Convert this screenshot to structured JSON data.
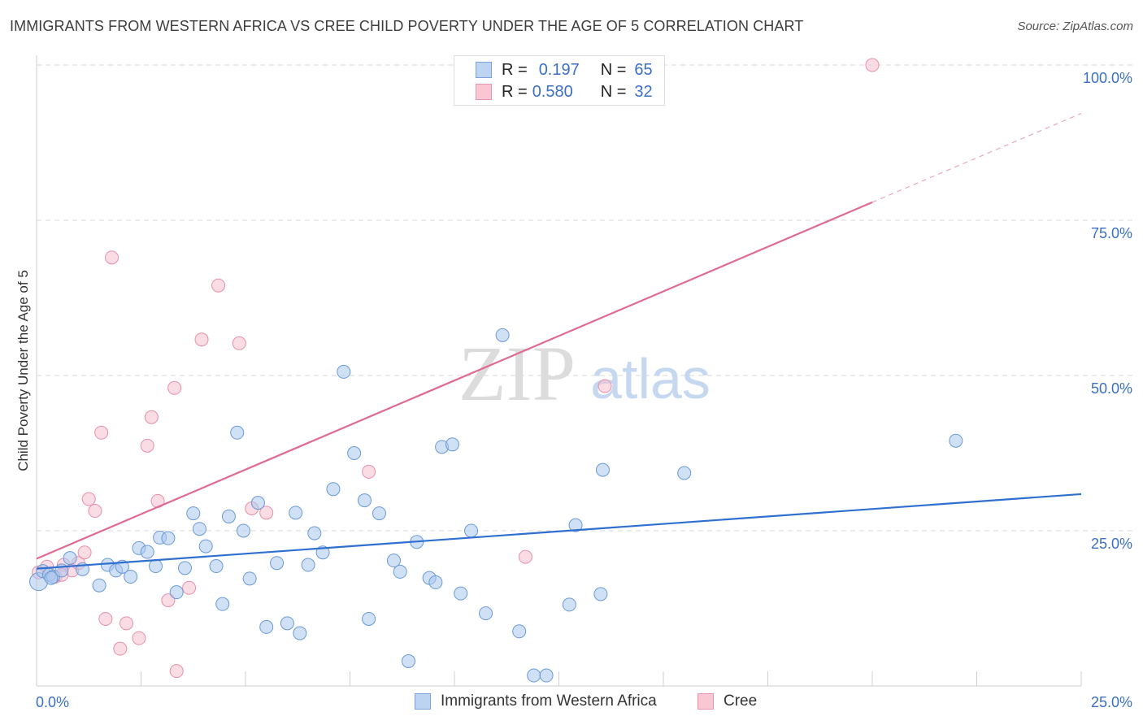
{
  "title": "IMMIGRANTS FROM WESTERN AFRICA VS CREE CHILD POVERTY UNDER THE AGE OF 5 CORRELATION CHART",
  "source": "Source: ZipAtlas.com",
  "watermark": {
    "zip": "ZIP",
    "atlas": "atlas"
  },
  "legend": {
    "r_label": "R =",
    "n_label": "N =",
    "entries": [
      {
        "r": "0.197",
        "n": "65",
        "fill": "#bcd3f2",
        "stroke": "#7aa3dd"
      },
      {
        "r": "0.580",
        "n": "32",
        "fill": "#f9c6d4",
        "stroke": "#e994ae"
      }
    ]
  },
  "colors": {
    "blue_fill": "#aac8ee",
    "blue_stroke": "#6a99d6",
    "blue_line": "#2f6fd0",
    "pink_fill": "#f6bfd0",
    "pink_stroke": "#e690ab",
    "pink_line": "#e06a92",
    "tick_label": "#3b6fc4",
    "grid": "#d9d9d9"
  },
  "chart_data": {
    "type": "scatter",
    "title": "IMMIGRANTS FROM WESTERN AFRICA VS CREE CHILD POVERTY UNDER THE AGE OF 5 CORRELATION CHART",
    "xlabel": "",
    "ylabel": "Child Poverty Under the Age of 5",
    "xlim": [
      0,
      25
    ],
    "ylim": [
      0,
      100
    ],
    "x_tick_labels": [
      "0.0%",
      "25.0%"
    ],
    "y_tick_labels": [
      {
        "value": 25,
        "label": "25.0%"
      },
      {
        "value": 50,
        "label": "50.0%"
      },
      {
        "value": 75,
        "label": "75.0%"
      },
      {
        "value": 100,
        "label": "100.0%"
      }
    ],
    "grid": true,
    "legend_position": "bottom",
    "series": [
      {
        "name": "Immigrants from Western Africa",
        "color": "#6a99d6",
        "trend": {
          "x": [
            0,
            25
          ],
          "y": [
            18.9,
            30.9
          ]
        },
        "points": [
          [
            0.05,
            16.8
          ],
          [
            0.15,
            18.5
          ],
          [
            0.3,
            17.9
          ],
          [
            0.4,
            17.6
          ],
          [
            0.6,
            18.6
          ],
          [
            0.8,
            20.6
          ],
          [
            1.1,
            18.8
          ],
          [
            1.5,
            16.2
          ],
          [
            1.7,
            19.5
          ],
          [
            1.9,
            18.6
          ],
          [
            2.05,
            19.2
          ],
          [
            2.25,
            17.6
          ],
          [
            2.45,
            22.2
          ],
          [
            2.65,
            21.6
          ],
          [
            2.85,
            19.3
          ],
          [
            2.95,
            23.9
          ],
          [
            3.15,
            23.8
          ],
          [
            3.35,
            15.1
          ],
          [
            3.55,
            19.0
          ],
          [
            3.75,
            27.8
          ],
          [
            3.9,
            25.3
          ],
          [
            4.05,
            22.5
          ],
          [
            4.3,
            19.3
          ],
          [
            4.45,
            13.2
          ],
          [
            4.6,
            27.3
          ],
          [
            4.8,
            40.8
          ],
          [
            4.95,
            25.0
          ],
          [
            5.1,
            17.3
          ],
          [
            5.3,
            29.5
          ],
          [
            5.5,
            9.5
          ],
          [
            5.75,
            19.8
          ],
          [
            6.0,
            10.1
          ],
          [
            6.2,
            27.9
          ],
          [
            6.3,
            8.5
          ],
          [
            6.5,
            19.5
          ],
          [
            6.65,
            24.6
          ],
          [
            6.85,
            21.5
          ],
          [
            7.1,
            31.7
          ],
          [
            7.35,
            50.6
          ],
          [
            7.6,
            37.5
          ],
          [
            7.85,
            29.9
          ],
          [
            7.95,
            10.8
          ],
          [
            8.2,
            27.8
          ],
          [
            8.55,
            20.2
          ],
          [
            8.7,
            18.4
          ],
          [
            8.9,
            4.0
          ],
          [
            9.1,
            23.2
          ],
          [
            9.4,
            17.4
          ],
          [
            9.55,
            16.7
          ],
          [
            9.7,
            38.5
          ],
          [
            9.95,
            38.9
          ],
          [
            10.15,
            14.9
          ],
          [
            10.4,
            25.0
          ],
          [
            10.75,
            11.7
          ],
          [
            11.15,
            56.5
          ],
          [
            11.55,
            8.8
          ],
          [
            11.9,
            1.7
          ],
          [
            12.2,
            1.7
          ],
          [
            12.75,
            13.1
          ],
          [
            12.9,
            25.9
          ],
          [
            13.5,
            14.8
          ],
          [
            13.55,
            34.8
          ],
          [
            15.5,
            34.3
          ],
          [
            22.0,
            39.5
          ],
          [
            0.35,
            17.4
          ]
        ]
      },
      {
        "name": "Cree",
        "color": "#e690ab",
        "trend": {
          "x": [
            0,
            20
          ],
          "y": [
            20.5,
            77.9
          ]
        },
        "trend_extension": {
          "x": [
            20,
            25
          ],
          "y": [
            77.9,
            92.2
          ]
        },
        "points": [
          [
            0.05,
            18.3
          ],
          [
            0.25,
            19.2
          ],
          [
            0.45,
            17.6
          ],
          [
            0.65,
            19.5
          ],
          [
            0.85,
            18.6
          ],
          [
            1.0,
            19.8
          ],
          [
            1.15,
            21.5
          ],
          [
            1.25,
            30.1
          ],
          [
            1.4,
            28.2
          ],
          [
            1.55,
            40.8
          ],
          [
            1.65,
            10.8
          ],
          [
            1.8,
            69.0
          ],
          [
            2.0,
            6.0
          ],
          [
            2.15,
            10.1
          ],
          [
            2.45,
            7.7
          ],
          [
            2.65,
            38.7
          ],
          [
            2.75,
            43.3
          ],
          [
            2.9,
            29.8
          ],
          [
            3.15,
            13.8
          ],
          [
            3.3,
            48.0
          ],
          [
            3.35,
            2.4
          ],
          [
            3.65,
            15.8
          ],
          [
            3.95,
            55.8
          ],
          [
            4.35,
            64.5
          ],
          [
            4.85,
            55.2
          ],
          [
            5.15,
            28.6
          ],
          [
            5.5,
            27.9
          ],
          [
            7.95,
            34.5
          ],
          [
            11.7,
            20.8
          ],
          [
            13.6,
            48.3
          ],
          [
            20.0,
            100.0
          ],
          [
            0.6,
            17.9
          ]
        ]
      }
    ]
  }
}
